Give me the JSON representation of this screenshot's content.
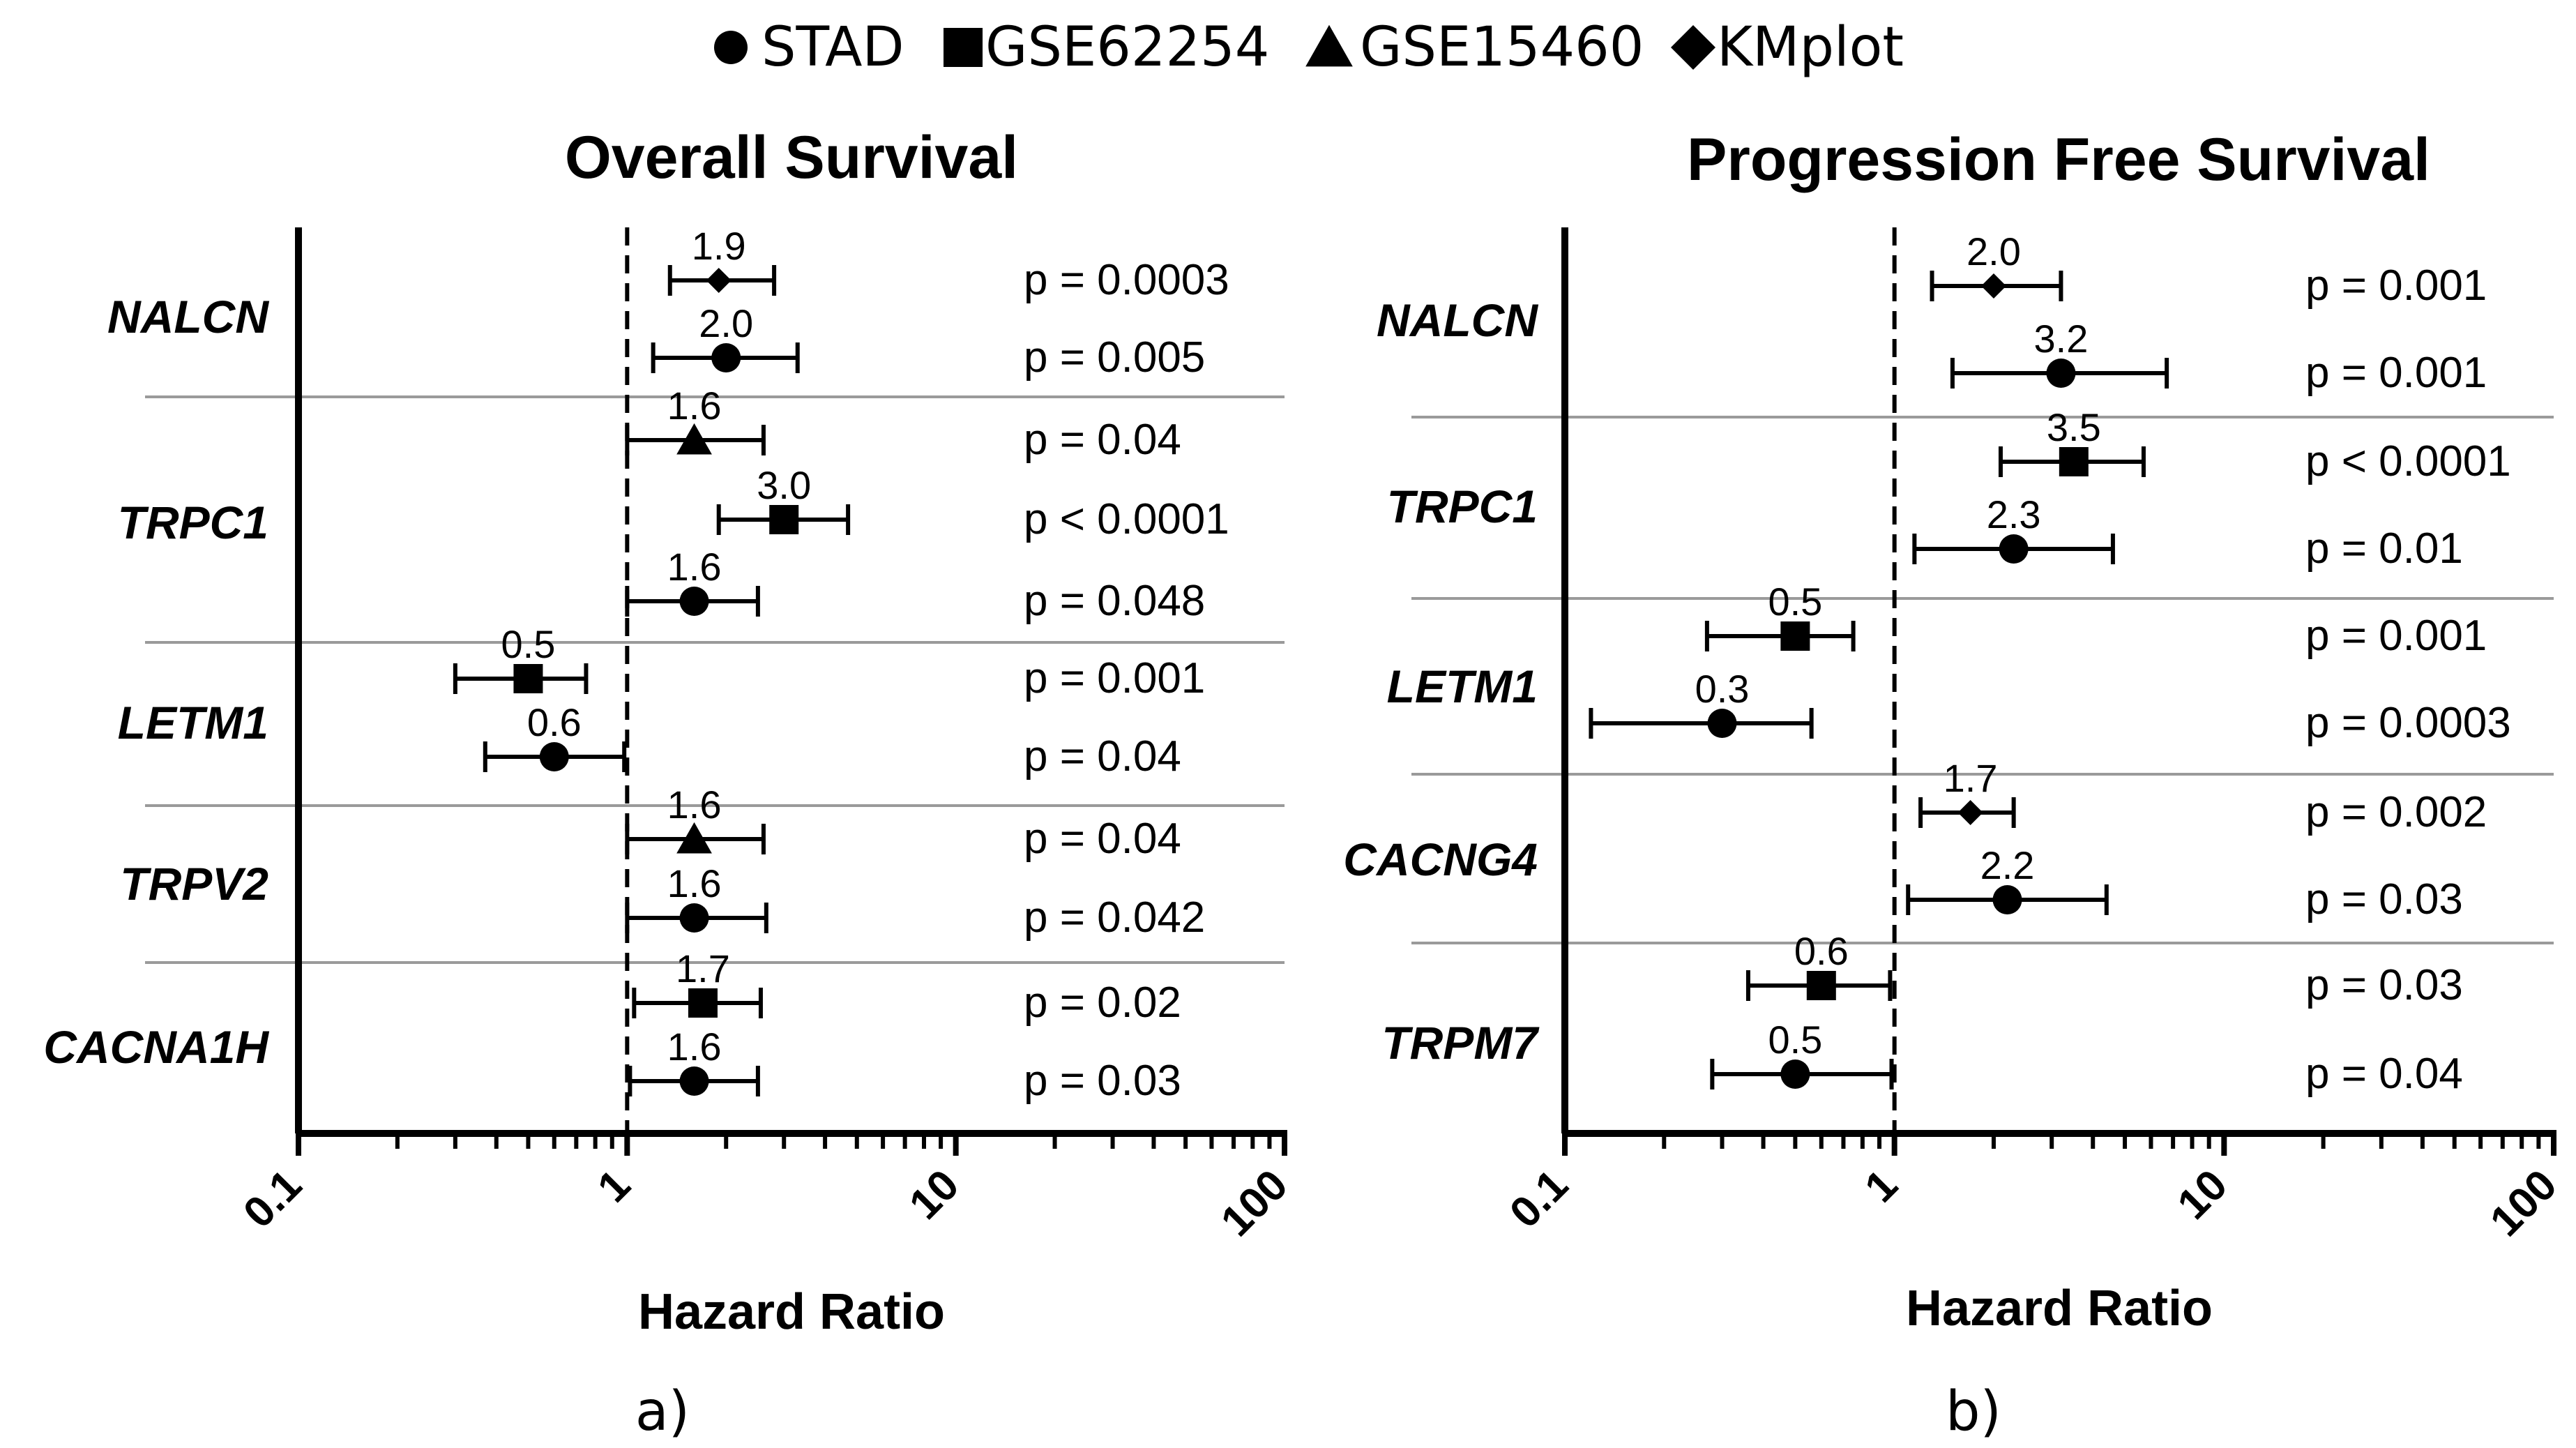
{
  "legend": [
    {
      "marker": "circle",
      "label": "STAD"
    },
    {
      "marker": "square",
      "label": "GSE62254"
    },
    {
      "marker": "triangle",
      "label": "GSE15460"
    },
    {
      "marker": "diamond",
      "label": "KMplot"
    }
  ],
  "colors": {
    "ink": "#000000",
    "separator": "#9a9a9a"
  },
  "chart_data": [
    {
      "type": "forest",
      "title": "Overall Survival",
      "xlabel": "Hazard Ratio",
      "panel_label": "a)",
      "x_scale": "log",
      "xlim": [
        0.1,
        100
      ],
      "x_ticks": [
        "0.1",
        "1",
        "10",
        "100"
      ],
      "reference_line": 1,
      "genes": [
        {
          "gene": "NALCN",
          "rows": [
            {
              "dataset": "KMplot",
              "marker": "diamond",
              "hr": 1.9,
              "ci": [
                1.35,
                2.8
              ],
              "label": "1.9",
              "p": "p = 0.0003"
            },
            {
              "dataset": "STAD",
              "marker": "circle",
              "hr": 2.0,
              "ci": [
                1.2,
                3.3
              ],
              "label": "2.0",
              "p": "p = 0.005"
            }
          ]
        },
        {
          "gene": "TRPC1",
          "rows": [
            {
              "dataset": "GSE15460",
              "marker": "triangle",
              "hr": 1.6,
              "ci": [
                1.0,
                2.6
              ],
              "label": "1.6",
              "p": "p = 0.04"
            },
            {
              "dataset": "GSE62254",
              "marker": "square",
              "hr": 3.0,
              "ci": [
                1.9,
                4.7
              ],
              "label": "3.0",
              "p": "p < 0.0001"
            },
            {
              "dataset": "STAD",
              "marker": "circle",
              "hr": 1.6,
              "ci": [
                1.0,
                2.5
              ],
              "label": "1.6",
              "p": "p = 0.048"
            }
          ]
        },
        {
          "gene": "LETM1",
          "rows": [
            {
              "dataset": "GSE62254",
              "marker": "square",
              "hr": 0.5,
              "ci": [
                0.3,
                0.75
              ],
              "label": "0.5",
              "p": "p = 0.001"
            },
            {
              "dataset": "STAD",
              "marker": "circle",
              "hr": 0.6,
              "ci": [
                0.37,
                0.98
              ],
              "label": "0.6",
              "p": "p = 0.04"
            }
          ]
        },
        {
          "gene": "TRPV2",
          "rows": [
            {
              "dataset": "GSE15460",
              "marker": "triangle",
              "hr": 1.6,
              "ci": [
                1.0,
                2.6
              ],
              "label": "1.6",
              "p": "p = 0.04"
            },
            {
              "dataset": "STAD",
              "marker": "circle",
              "hr": 1.6,
              "ci": [
                1.0,
                2.65
              ],
              "label": "1.6",
              "p": "p = 0.042"
            }
          ]
        },
        {
          "gene": "CACNA1H",
          "rows": [
            {
              "dataset": "GSE62254",
              "marker": "square",
              "hr": 1.7,
              "ci": [
                1.05,
                2.55
              ],
              "label": "1.7",
              "p": "p = 0.02"
            },
            {
              "dataset": "STAD",
              "marker": "circle",
              "hr": 1.6,
              "ci": [
                1.02,
                2.5
              ],
              "label": "1.6",
              "p": "p = 0.03"
            }
          ]
        }
      ]
    },
    {
      "type": "forest",
      "title": "Progression Free Survival",
      "xlabel": "Hazard Ratio",
      "panel_label": "b)",
      "x_scale": "log",
      "xlim": [
        0.1,
        100
      ],
      "x_ticks": [
        "0.1",
        "1",
        "10",
        "100"
      ],
      "reference_line": 1,
      "genes": [
        {
          "gene": "NALCN",
          "rows": [
            {
              "dataset": "KMplot",
              "marker": "diamond",
              "hr": 2.0,
              "ci": [
                1.3,
                3.2
              ],
              "label": "2.0",
              "p": "p = 0.001"
            },
            {
              "dataset": "STAD",
              "marker": "circle",
              "hr": 3.2,
              "ci": [
                1.5,
                6.7
              ],
              "label": "3.2",
              "p": "p = 0.001"
            }
          ]
        },
        {
          "gene": "TRPC1",
          "rows": [
            {
              "dataset": "GSE62254",
              "marker": "square",
              "hr": 3.5,
              "ci": [
                2.1,
                5.7
              ],
              "label": "3.5",
              "p": "p < 0.0001"
            },
            {
              "dataset": "STAD",
              "marker": "circle",
              "hr": 2.3,
              "ci": [
                1.15,
                4.6
              ],
              "label": "2.3",
              "p": "p = 0.01"
            }
          ]
        },
        {
          "gene": "LETM1",
          "rows": [
            {
              "dataset": "GSE62254",
              "marker": "square",
              "hr": 0.5,
              "ci": [
                0.27,
                0.75
              ],
              "label": "0.5",
              "p": "p = 0.001"
            },
            {
              "dataset": "STAD",
              "marker": "circle",
              "hr": 0.3,
              "ci": [
                0.12,
                0.56
              ],
              "label": "0.3",
              "p": "p = 0.0003"
            }
          ]
        },
        {
          "gene": "CACNG4",
          "rows": [
            {
              "dataset": "KMplot",
              "marker": "diamond",
              "hr": 1.7,
              "ci": [
                1.2,
                2.3
              ],
              "label": "1.7",
              "p": "p = 0.002"
            },
            {
              "dataset": "STAD",
              "marker": "circle",
              "hr": 2.2,
              "ci": [
                1.1,
                4.4
              ],
              "label": "2.2",
              "p": "p = 0.03"
            }
          ]
        },
        {
          "gene": "TRPM7",
          "rows": [
            {
              "dataset": "GSE62254",
              "marker": "square",
              "hr": 0.6,
              "ci": [
                0.36,
                0.97
              ],
              "label": "0.6",
              "p": "p = 0.03"
            },
            {
              "dataset": "STAD",
              "marker": "circle",
              "hr": 0.5,
              "ci": [
                0.28,
                0.98
              ],
              "label": "0.5",
              "p": "p = 0.04"
            }
          ]
        }
      ]
    }
  ]
}
